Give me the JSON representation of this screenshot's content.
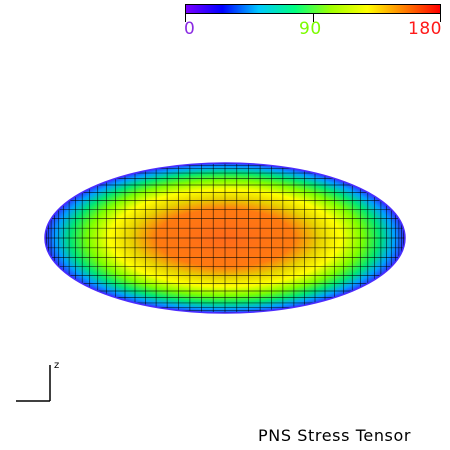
{
  "title": "PNS Stress Tensor",
  "colorbar": {
    "min_label": "0",
    "mid_label": "90",
    "max_label": "180",
    "min_color": "#8a2be2",
    "mid_color": "#7cfc00",
    "max_color": "#ff1a1a",
    "gradient": [
      "#7a00ff",
      "#0000ff",
      "#00c8ff",
      "#00ff80",
      "#a0ff00",
      "#ffff00",
      "#ff8000",
      "#ff0000"
    ]
  },
  "axis_triad": {
    "axis_label": "z"
  },
  "colors": {
    "background": "#ffffff",
    "mesh_line": "#000000"
  }
}
